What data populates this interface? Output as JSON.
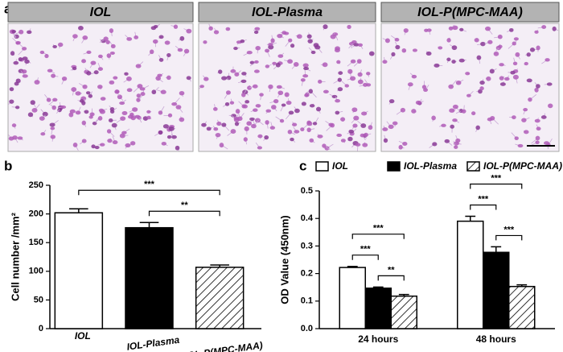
{
  "panel_a": {
    "label": "a",
    "images": [
      "IOL",
      "IOL-Plasma",
      "IOL-P(MPC-MAA)"
    ]
  },
  "chart_data": [
    {
      "label": "b",
      "type": "bar",
      "ylabel": "Cell number /mm²",
      "categories": [
        "IOL",
        "IOL-Plasma",
        "IOL-P(MPC-MAA)"
      ],
      "values": [
        202,
        176,
        107
      ],
      "errors": [
        7,
        9,
        4
      ],
      "colors": [
        "#ffffff",
        "#000000",
        "#ffffff"
      ],
      "hatched": [
        false,
        false,
        true
      ],
      "ylim": [
        0,
        250
      ],
      "yticks": [
        0,
        50,
        100,
        150,
        200,
        250
      ],
      "annotations": [
        {
          "text": "**",
          "between": [
            "IOL-Plasma",
            "IOL-P(MPC-MAA)"
          ]
        },
        {
          "text": "***",
          "between": [
            "IOL",
            "IOL-P(MPC-MAA)"
          ]
        }
      ]
    },
    {
      "label": "c",
      "type": "grouped_bar",
      "ylabel": "OD Value (450nm)",
      "categories": [
        "24 hours",
        "48 hours"
      ],
      "series": [
        {
          "name": "IOL",
          "color": "#ffffff",
          "hatched": false,
          "values": [
            0.222,
            0.39
          ],
          "errors": [
            0.004,
            0.018
          ]
        },
        {
          "name": "IOL-Plasma",
          "color": "#000000",
          "hatched": false,
          "values": [
            0.147,
            0.277
          ],
          "errors": [
            0.004,
            0.02
          ]
        },
        {
          "name": "IOL-P(MPC-MAA)",
          "color": "#ffffff",
          "hatched": true,
          "values": [
            0.118,
            0.153
          ],
          "errors": [
            0.006,
            0.006
          ]
        }
      ],
      "ylim": [
        0,
        0.5
      ],
      "yticks": [
        {
          "value": 0,
          "label": "0.0"
        },
        0.1,
        0.2,
        0.3,
        0.4,
        0.5
      ],
      "annotations": [
        {
          "text": "***",
          "category": "24 hours",
          "between": [
            "IOL",
            "IOL-Plasma"
          ]
        },
        {
          "text": "**",
          "category": "24 hours",
          "between": [
            "IOL-Plasma",
            "IOL-P(MPC-MAA)"
          ]
        },
        {
          "text": "***",
          "category": "24 hours",
          "between": [
            "IOL",
            "IOL-P(MPC-MAA)"
          ]
        },
        {
          "text": "***",
          "category": "48 hours",
          "between": [
            "IOL-Plasma",
            "IOL-P(MPC-MAA)"
          ]
        },
        {
          "text": "***",
          "category": "48 hours",
          "between": [
            "IOL",
            "IOL-Plasma"
          ]
        },
        {
          "text": "***",
          "category": "48 hours",
          "between": [
            "IOL",
            "IOL-P(MPC-MAA)"
          ]
        }
      ]
    }
  ]
}
